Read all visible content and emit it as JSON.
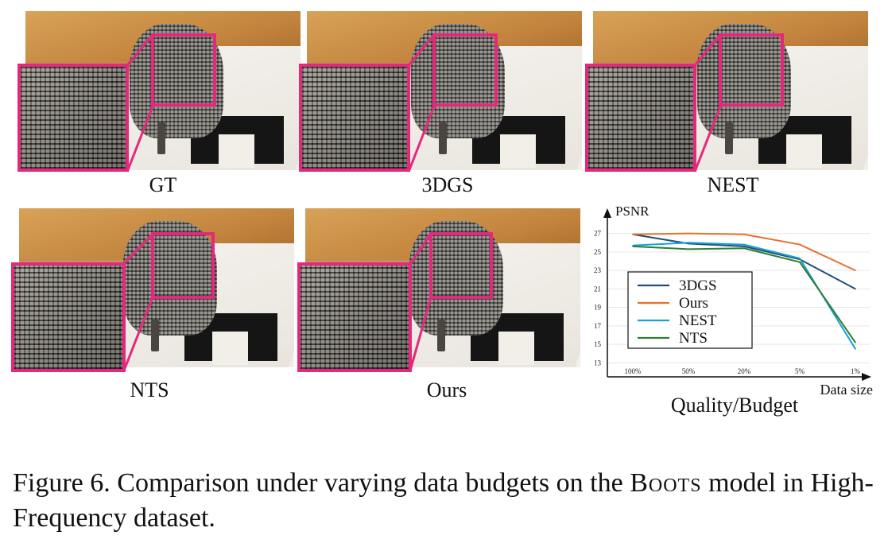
{
  "panels": [
    {
      "name": "gt",
      "label": "GT"
    },
    {
      "name": "3dgs",
      "label": "3DGS"
    },
    {
      "name": "nest",
      "label": "NEST"
    },
    {
      "name": "nts",
      "label": "NTS"
    },
    {
      "name": "ours",
      "label": "Ours"
    }
  ],
  "chart_data": {
    "type": "line",
    "ylabel": "PSNR",
    "xlabel": "Data size",
    "title_below": "Quality/Budget",
    "categories": [
      "100%",
      "50%",
      "20%",
      "5%",
      "1%"
    ],
    "yticks": [
      13,
      15,
      17,
      19,
      21,
      23,
      25,
      27
    ],
    "ylim": [
      12,
      28
    ],
    "grid": true,
    "legend_position": "lower-left",
    "series": [
      {
        "name": "3DGS",
        "color": "#1f4e79",
        "values": [
          26.9,
          25.9,
          25.6,
          24.2,
          21.0
        ]
      },
      {
        "name": "Ours",
        "color": "#e8702a",
        "values": [
          26.9,
          27.0,
          26.9,
          25.8,
          23.0
        ]
      },
      {
        "name": "NEST",
        "color": "#1aa0d6",
        "values": [
          25.7,
          26.0,
          25.8,
          24.3,
          14.5
        ]
      },
      {
        "name": "NTS",
        "color": "#2e7d32",
        "values": [
          25.6,
          25.3,
          25.4,
          23.9,
          15.2
        ]
      }
    ]
  },
  "caption": {
    "prefix": "Figure 6.  Comparison under varying data budgets on the ",
    "model": "Boots",
    "suffix": " model in High-Frequency dataset."
  }
}
